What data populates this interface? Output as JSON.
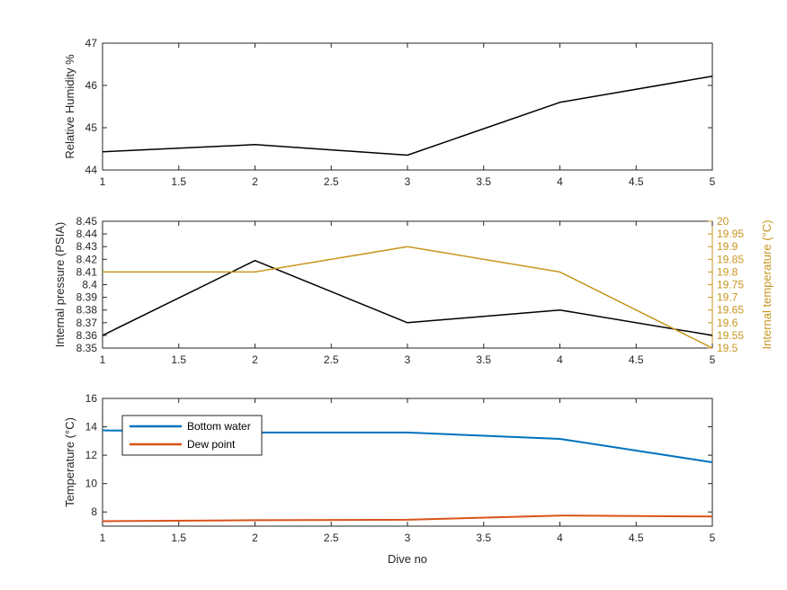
{
  "figure": {
    "xlabel": "Dive no",
    "axis_color": "#262626",
    "right_axis_color": "#c8961e"
  },
  "chart_data": [
    {
      "type": "line",
      "id": "humidity",
      "title": "",
      "xlabel": "",
      "ylabel": "Relative Humidity %",
      "xlim": [
        1,
        5
      ],
      "ylim": [
        44,
        47
      ],
      "xticks": [
        "1",
        "1.5",
        "2",
        "2.5",
        "3",
        "3.5",
        "4",
        "4.5",
        "5"
      ],
      "yticks": [
        "44",
        "45",
        "46",
        "47"
      ],
      "grid": false,
      "series": [
        {
          "x": [
            1,
            2,
            3,
            4,
            5
          ],
          "y": [
            44.43,
            44.6,
            44.35,
            45.6,
            46.22
          ],
          "color": "#000000",
          "axis": "left"
        }
      ]
    },
    {
      "type": "line",
      "id": "pressure",
      "title": "",
      "xlabel": "",
      "ylabel": "Internal pressure (PSIA)",
      "ylabel_right": "Internal temperature (°C)",
      "xlim": [
        1,
        5
      ],
      "ylim": [
        8.35,
        8.45
      ],
      "ylim_right": [
        19.5,
        20
      ],
      "xticks": [
        "1",
        "1.5",
        "2",
        "2.5",
        "3",
        "3.5",
        "4",
        "4.5",
        "5"
      ],
      "yticks": [
        "8.35",
        "8.36",
        "8.37",
        "8.38",
        "8.39",
        "8.4",
        "8.41",
        "8.42",
        "8.43",
        "8.44",
        "8.45"
      ],
      "yticks_right": [
        "19.5",
        "19.55",
        "19.6",
        "19.65",
        "19.7",
        "19.75",
        "19.8",
        "19.85",
        "19.9",
        "19.95",
        "20"
      ],
      "grid": false,
      "series": [
        {
          "x": [
            1,
            2,
            3,
            4,
            5
          ],
          "y": [
            8.36,
            8.419,
            8.37,
            8.38,
            8.36
          ],
          "color": "#000000",
          "axis": "left"
        },
        {
          "x": [
            1,
            2,
            3,
            4,
            5
          ],
          "y": [
            19.8,
            19.8,
            19.9,
            19.8,
            19.5
          ],
          "color": "#c8961e",
          "axis": "right"
        }
      ]
    },
    {
      "type": "line",
      "id": "temperature",
      "title": "",
      "xlabel": "Dive no",
      "ylabel": "Temperature (°C)",
      "xlim": [
        1,
        5
      ],
      "ylim": [
        7,
        16
      ],
      "xticks": [
        "1",
        "1.5",
        "2",
        "2.5",
        "3",
        "3.5",
        "4",
        "4.5",
        "5"
      ],
      "yticks": [
        "8",
        "10",
        "12",
        "14",
        "16"
      ],
      "ytick_values": [
        8,
        10,
        12,
        14,
        16
      ],
      "grid": false,
      "legend": "top-left",
      "series": [
        {
          "name": "Bottom water",
          "x": [
            1,
            2,
            3,
            4,
            5
          ],
          "y": [
            13.75,
            13.6,
            13.6,
            13.15,
            11.5
          ],
          "color": "#0072bd",
          "axis": "left"
        },
        {
          "name": "Dew point",
          "x": [
            1,
            2,
            3,
            4,
            5
          ],
          "y": [
            7.35,
            7.42,
            7.45,
            7.75,
            7.68
          ],
          "color": "#d95319",
          "axis": "left"
        }
      ]
    }
  ]
}
